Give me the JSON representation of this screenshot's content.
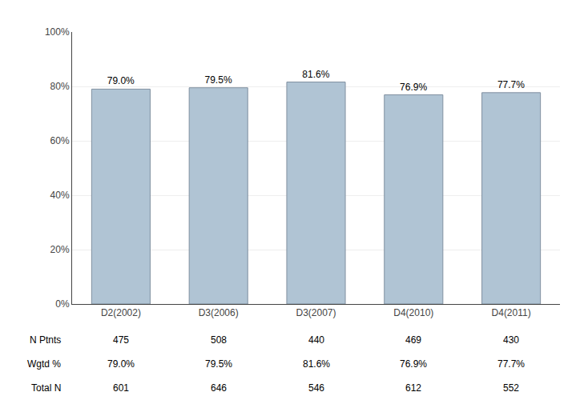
{
  "chart_data": {
    "type": "bar",
    "categories": [
      "D2(2002)",
      "D3(2006)",
      "D3(2007)",
      "D4(2010)",
      "D4(2011)"
    ],
    "values": [
      79.0,
      79.5,
      81.6,
      76.9,
      77.7
    ],
    "value_labels": [
      "79.0%",
      "79.5%",
      "81.6%",
      "76.9%",
      "77.7%"
    ],
    "data_labels": true,
    "color": "#b0c4d4",
    "ylim": [
      0,
      100
    ],
    "yticks": [
      {
        "value": 0,
        "label": "0%"
      },
      {
        "value": 20,
        "label": "20%"
      },
      {
        "value": 40,
        "label": "40%"
      },
      {
        "value": 60,
        "label": "60%"
      },
      {
        "value": 80,
        "label": "80%"
      },
      {
        "value": 100,
        "label": "100%"
      }
    ],
    "grid": true,
    "table": {
      "rows": [
        "N Ptnts",
        "Wgtd %",
        "Total N"
      ],
      "cells": [
        [
          "475",
          "508",
          "440",
          "469",
          "430"
        ],
        [
          "79.0%",
          "79.5%",
          "81.6%",
          "76.9%",
          "77.7%"
        ],
        [
          "601",
          "646",
          "546",
          "612",
          "552"
        ]
      ]
    }
  }
}
